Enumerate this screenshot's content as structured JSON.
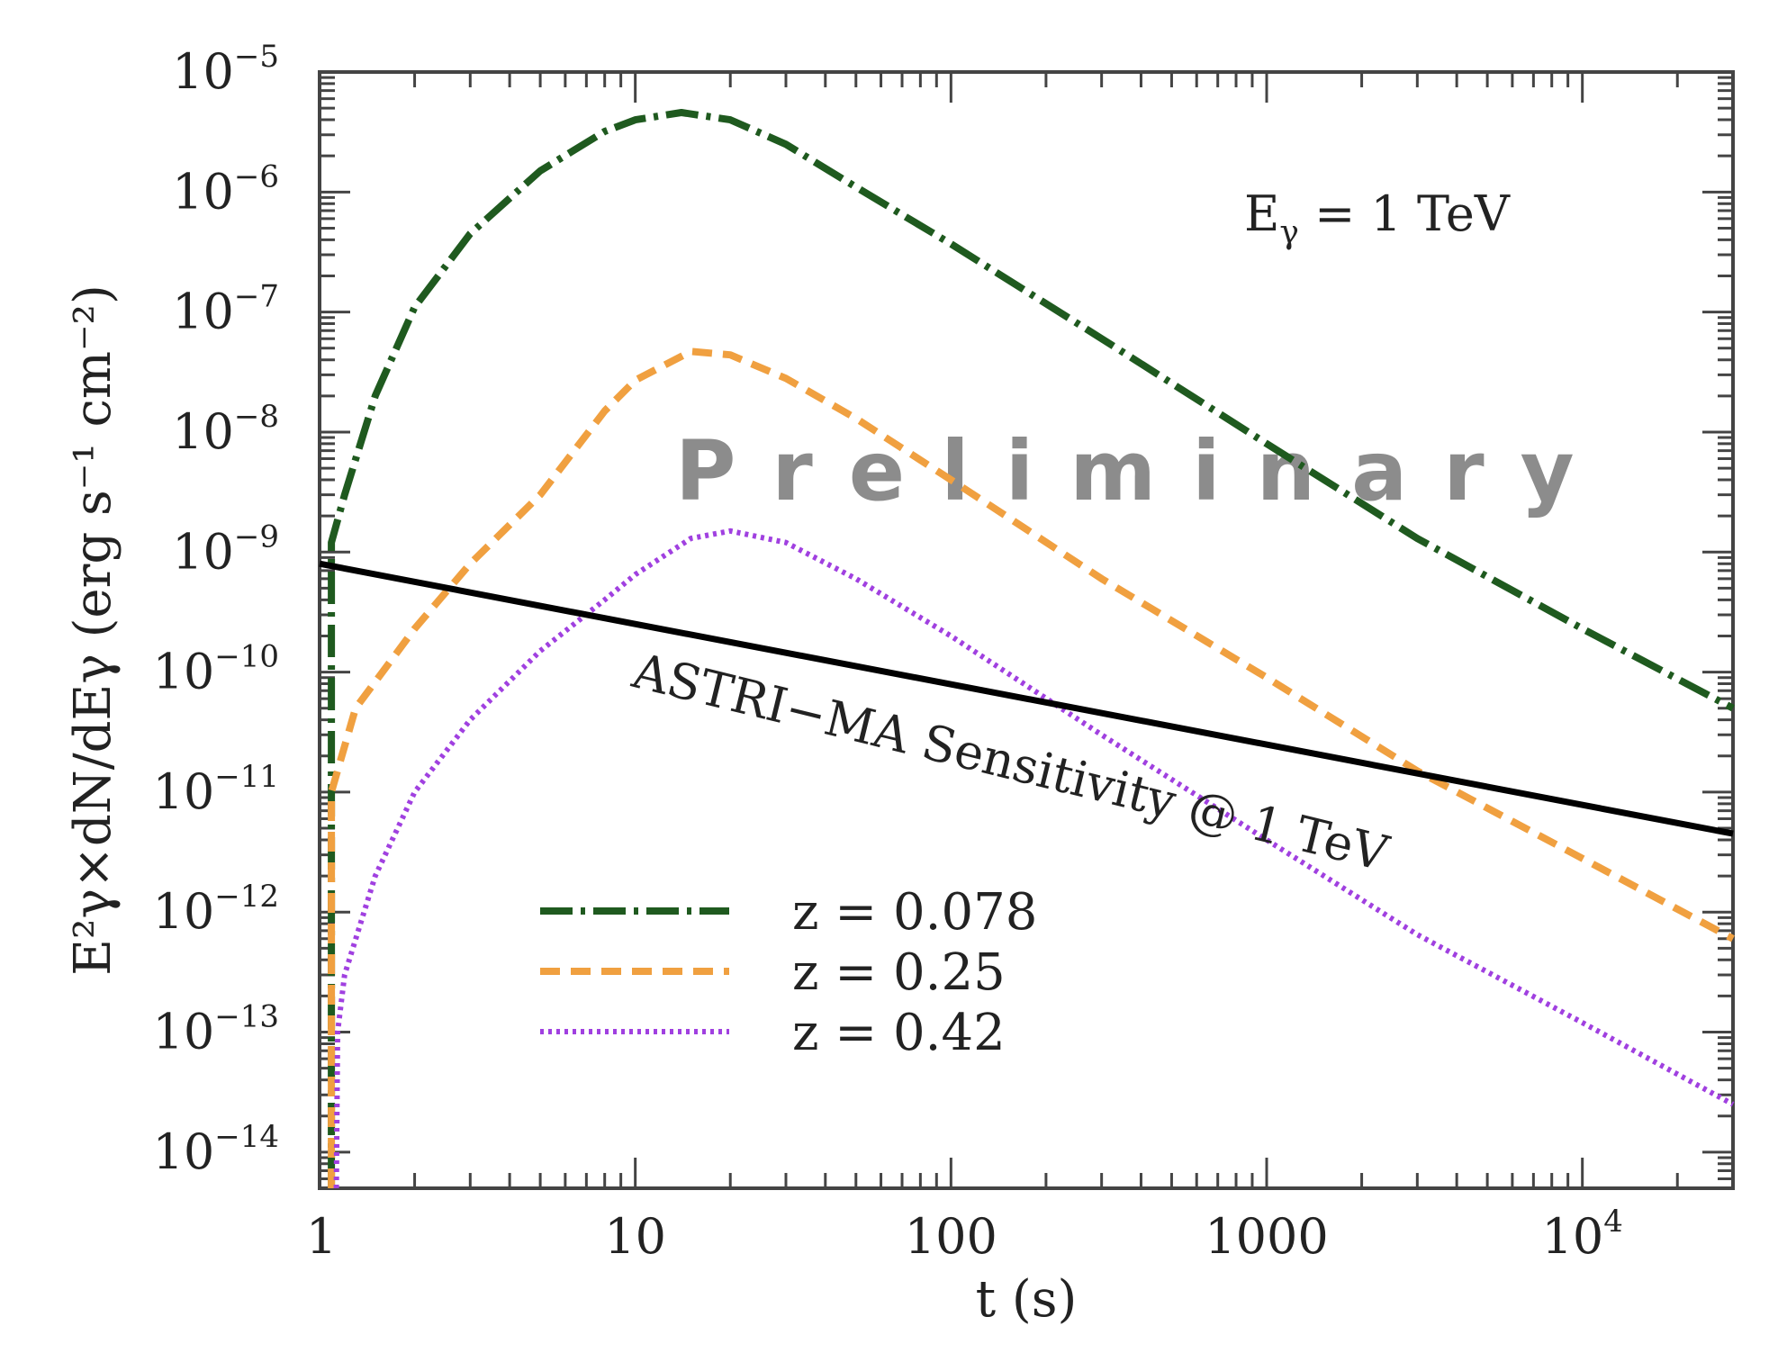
{
  "chart_data": {
    "type": "line",
    "xscale": "log",
    "yscale": "log",
    "xlim": [
      1,
      30000
    ],
    "ylim": [
      5e-15,
      1e-05
    ],
    "xlabel": "t (s)",
    "ylabel": "E²γ×dN/dEγ (erg s⁻¹ cm⁻²)",
    "x_ticks": [
      {
        "value": 1,
        "label": "1"
      },
      {
        "value": 10,
        "label": "10"
      },
      {
        "value": 100,
        "label": "100"
      },
      {
        "value": 1000,
        "label": "1000"
      },
      {
        "value": 10000,
        "label": "10",
        "exp": "4"
      }
    ],
    "y_ticks": [
      {
        "value": 1e-05,
        "label": "10",
        "exp": "−5"
      },
      {
        "value": 1e-06,
        "label": "10",
        "exp": "−6"
      },
      {
        "value": 1e-07,
        "label": "10",
        "exp": "−7"
      },
      {
        "value": 1e-08,
        "label": "10",
        "exp": "−8"
      },
      {
        "value": 1e-09,
        "label": "10",
        "exp": "−9"
      },
      {
        "value": 1e-10,
        "label": "10",
        "exp": "−10"
      },
      {
        "value": 1e-11,
        "label": "10",
        "exp": "−11"
      },
      {
        "value": 1e-12,
        "label": "10",
        "exp": "−12"
      },
      {
        "value": 1e-13,
        "label": "10",
        "exp": "−13"
      },
      {
        "value": 1e-14,
        "label": "10",
        "exp": "−14"
      }
    ],
    "annotations": {
      "energy_label": "Eγ = 1 TeV",
      "energy_main": "E",
      "energy_sub": "γ",
      "energy_rest": " = 1 TeV",
      "sensitivity_label": "ASTRI−MA Sensitivity @ 1 TeV",
      "watermark": "Preliminary"
    },
    "series": [
      {
        "name": "z = 0.078",
        "color": "#1f5a1f",
        "style": "dash-dot",
        "points": [
          [
            1.09,
            5e-15
          ],
          [
            1.09,
            1.2e-09
          ],
          [
            1.2,
            3e-09
          ],
          [
            1.5,
            2e-08
          ],
          [
            2,
            1.1e-07
          ],
          [
            3,
            4.5e-07
          ],
          [
            5,
            1.5e-06
          ],
          [
            8,
            3.2e-06
          ],
          [
            10,
            4e-06
          ],
          [
            14,
            4.6e-06
          ],
          [
            20,
            4e-06
          ],
          [
            30,
            2.5e-06
          ],
          [
            50,
            1.1e-06
          ],
          [
            100,
            3.7e-07
          ],
          [
            300,
            6e-08
          ],
          [
            1000,
            8e-09
          ],
          [
            3000,
            1.3e-09
          ],
          [
            10000,
            2.3e-10
          ],
          [
            30000,
            5e-11
          ]
        ]
      },
      {
        "name": "z = 0.25",
        "color": "#f0a040",
        "style": "dashed",
        "points": [
          [
            1.09,
            5e-15
          ],
          [
            1.09,
            1e-11
          ],
          [
            1.3,
            5e-11
          ],
          [
            2,
            2.3e-10
          ],
          [
            3,
            8e-10
          ],
          [
            5,
            3e-09
          ],
          [
            8,
            1.5e-08
          ],
          [
            10,
            2.7e-08
          ],
          [
            15,
            4.7e-08
          ],
          [
            20,
            4.4e-08
          ],
          [
            30,
            2.8e-08
          ],
          [
            50,
            1.3e-08
          ],
          [
            100,
            4e-09
          ],
          [
            300,
            6e-10
          ],
          [
            1000,
            9e-11
          ],
          [
            3000,
            1.5e-11
          ],
          [
            10000,
            2.8e-12
          ],
          [
            30000,
            6e-13
          ]
        ]
      },
      {
        "name": "z = 0.42",
        "color": "#a040e0",
        "style": "dotted",
        "points": [
          [
            1.13,
            5e-15
          ],
          [
            1.14,
            1e-13
          ],
          [
            1.2,
            3e-13
          ],
          [
            1.5,
            2e-12
          ],
          [
            2,
            1e-11
          ],
          [
            3,
            4e-11
          ],
          [
            5,
            1.5e-10
          ],
          [
            8,
            4e-10
          ],
          [
            10,
            6.5e-10
          ],
          [
            15,
            1.3e-09
          ],
          [
            20,
            1.5e-09
          ],
          [
            30,
            1.2e-09
          ],
          [
            50,
            6e-10
          ],
          [
            100,
            2e-10
          ],
          [
            300,
            3e-11
          ],
          [
            1000,
            4e-12
          ],
          [
            3000,
            6.5e-13
          ],
          [
            10000,
            1.2e-13
          ],
          [
            30000,
            2.5e-14
          ]
        ]
      },
      {
        "name": "ASTRI-MA Sensitivity",
        "color": "#000000",
        "style": "solid",
        "points": [
          [
            1,
            8e-10
          ],
          [
            30000,
            4.5e-12
          ]
        ]
      }
    ],
    "legend": [
      {
        "label": "z = 0.078",
        "color": "#1f5a1f",
        "style": "dash-dot"
      },
      {
        "label": "z = 0.25",
        "color": "#f0a040",
        "style": "dashed"
      },
      {
        "label": "z = 0.42",
        "color": "#a040e0",
        "style": "dotted"
      }
    ]
  }
}
